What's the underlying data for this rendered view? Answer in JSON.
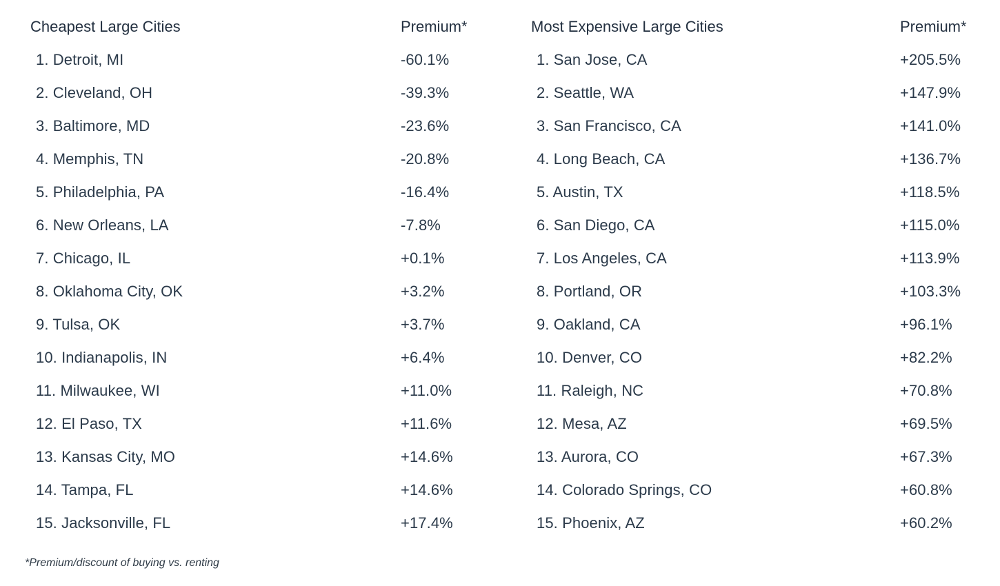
{
  "cheapest": {
    "header_name": "Cheapest Large Cities",
    "header_premium": "Premium*",
    "rows": [
      {
        "city": "1. Detroit, MI",
        "premium": "-60.1%"
      },
      {
        "city": "2. Cleveland, OH",
        "premium": "-39.3%"
      },
      {
        "city": "3. Baltimore, MD",
        "premium": "-23.6%"
      },
      {
        "city": "4. Memphis, TN",
        "premium": "-20.8%"
      },
      {
        "city": "5. Philadelphia, PA",
        "premium": "-16.4%"
      },
      {
        "city": "6. New Orleans, LA",
        "premium": "-7.8%"
      },
      {
        "city": "7. Chicago, IL",
        "premium": "+0.1%"
      },
      {
        "city": "8. Oklahoma City, OK",
        "premium": "+3.2%"
      },
      {
        "city": "9. Tulsa, OK",
        "premium": "+3.7%"
      },
      {
        "city": "10. Indianapolis, IN",
        "premium": "+6.4%"
      },
      {
        "city": "11. Milwaukee, WI",
        "premium": "+11.0%"
      },
      {
        "city": "12. El Paso, TX",
        "premium": "+11.6%"
      },
      {
        "city": "13. Kansas City, MO",
        "premium": "+14.6%"
      },
      {
        "city": "14. Tampa, FL",
        "premium": "+14.6%"
      },
      {
        "city": "15. Jacksonville, FL",
        "premium": "+17.4%"
      }
    ]
  },
  "expensive": {
    "header_name": "Most Expensive Large Cities",
    "header_premium": "Premium*",
    "rows": [
      {
        "city": "1. San Jose, CA",
        "premium": "+205.5%"
      },
      {
        "city": "2. Seattle, WA",
        "premium": "+147.9%"
      },
      {
        "city": "3. San Francisco, CA",
        "premium": "+141.0%"
      },
      {
        "city": "4. Long Beach, CA",
        "premium": "+136.7%"
      },
      {
        "city": "5. Austin, TX",
        "premium": "+118.5%"
      },
      {
        "city": "6. San Diego, CA",
        "premium": "+115.0%"
      },
      {
        "city": "7. Los Angeles, CA",
        "premium": "+113.9%"
      },
      {
        "city": "8. Portland, OR",
        "premium": "+103.3%"
      },
      {
        "city": "9. Oakland, CA",
        "premium": "+96.1%"
      },
      {
        "city": "10. Denver, CO",
        "premium": "+82.2%"
      },
      {
        "city": "11. Raleigh, NC",
        "premium": "+70.8%"
      },
      {
        "city": "12. Mesa, AZ",
        "premium": "+69.5%"
      },
      {
        "city": "13. Aurora, CO",
        "premium": "+67.3%"
      },
      {
        "city": "14. Colorado Springs, CO",
        "premium": "+60.8%"
      },
      {
        "city": "15. Phoenix, AZ",
        "premium": "+60.2%"
      }
    ]
  },
  "footnote": "*Premium/discount of buying vs. renting"
}
